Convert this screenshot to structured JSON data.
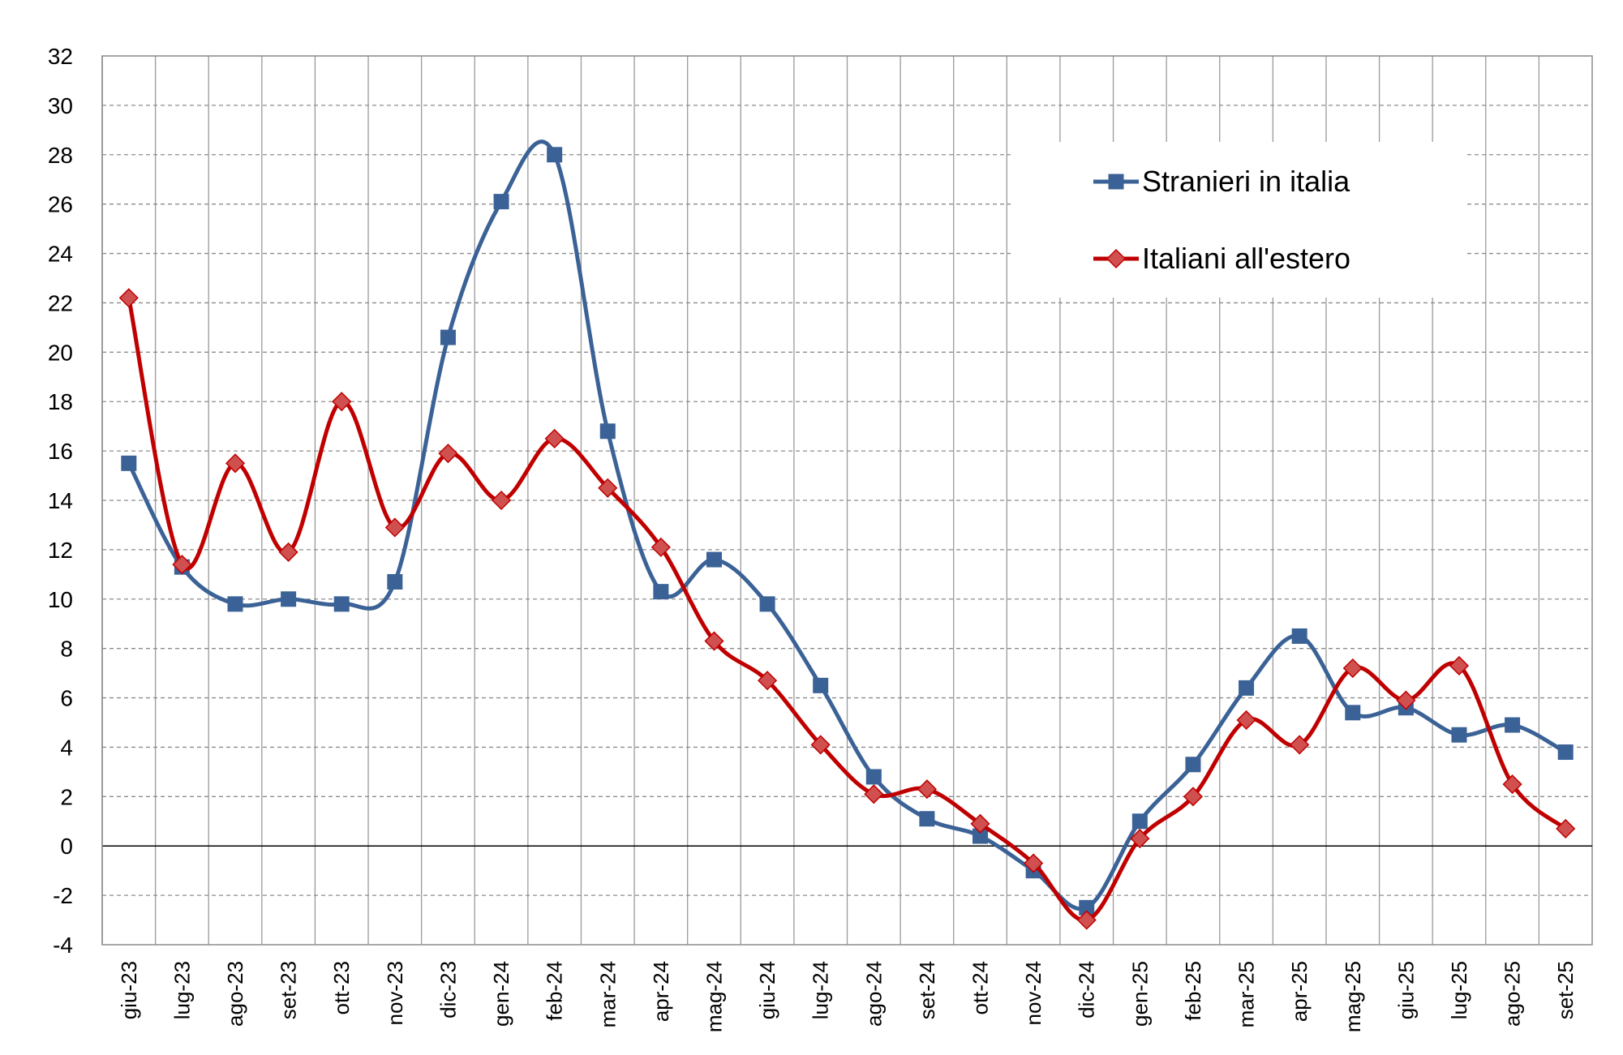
{
  "chart_data": {
    "type": "line",
    "title": "",
    "xlabel": "",
    "ylabel": "",
    "ylim": [
      -4,
      32
    ],
    "yticks": [
      -4,
      -2,
      0,
      2,
      4,
      6,
      8,
      10,
      12,
      14,
      16,
      18,
      20,
      22,
      24,
      26,
      28,
      30,
      32
    ],
    "grid": true,
    "smoothed": true,
    "legend_position": "top-right",
    "categories": [
      "giu-23",
      "lug-23",
      "ago-23",
      "set-23",
      "ott-23",
      "nov-23",
      "dic-23",
      "gen-24",
      "feb-24",
      "mar-24",
      "apr-24",
      "mag-24",
      "giu-24",
      "lug-24",
      "ago-24",
      "set-24",
      "ott-24",
      "nov-24",
      "dic-24",
      "gen-25",
      "feb-25",
      "mar-25",
      "apr-25",
      "mag-25",
      "giu-25",
      "lug-25",
      "ago-25",
      "set-25"
    ],
    "series": [
      {
        "name": "Stranieri in italia",
        "color": "#3B6296",
        "marker": "square",
        "values": [
          15.5,
          11.3,
          9.8,
          10.0,
          9.8,
          10.7,
          20.6,
          26.1,
          28.0,
          16.8,
          10.3,
          11.6,
          9.8,
          6.5,
          2.8,
          1.1,
          0.4,
          -1.0,
          -2.5,
          1.0,
          3.3,
          6.4,
          8.5,
          5.4,
          5.6,
          4.5,
          4.9,
          3.8
        ]
      },
      {
        "name": "Italiani all'estero",
        "color": "#C00000",
        "marker": "diamond",
        "marker_fill": "#D05050",
        "values": [
          22.2,
          11.4,
          15.5,
          11.9,
          18.0,
          12.9,
          15.9,
          14.0,
          16.5,
          14.5,
          12.1,
          8.3,
          6.7,
          4.1,
          2.1,
          2.3,
          0.9,
          -0.7,
          -3.0,
          0.3,
          2.0,
          5.1,
          4.1,
          7.2,
          5.9,
          7.3,
          2.5,
          0.7
        ]
      }
    ]
  }
}
